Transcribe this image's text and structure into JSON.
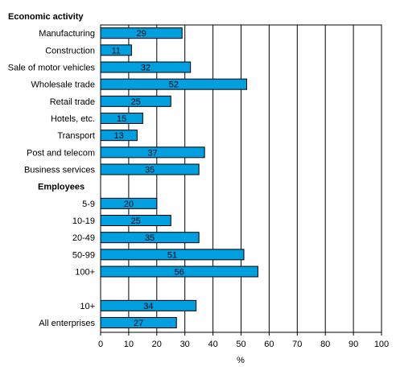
{
  "chart_data": {
    "type": "bar",
    "orientation": "horizontal",
    "xlabel": "%",
    "xlim": [
      0,
      100
    ],
    "xticks": [
      0,
      10,
      20,
      30,
      40,
      50,
      60,
      70,
      80,
      90,
      100
    ],
    "grid": true,
    "bar_color": "#00a0e0",
    "groups": [
      {
        "label": "Economic activity",
        "items": [
          {
            "category": "Manufacturing",
            "value": 29
          },
          {
            "category": "Construction",
            "value": 11
          },
          {
            "category": "Sale of motor vehicles",
            "value": 32
          },
          {
            "category": "Wholesale trade",
            "value": 52
          },
          {
            "category": "Retail trade",
            "value": 25
          },
          {
            "category": "Hotels, etc.",
            "value": 15
          },
          {
            "category": "Transport",
            "value": 13
          },
          {
            "category": "Post and telecom",
            "value": 37
          },
          {
            "category": "Business services",
            "value": 35
          }
        ]
      },
      {
        "label": "Employees",
        "items": [
          {
            "category": "5-9",
            "value": 20
          },
          {
            "category": "10-19",
            "value": 25
          },
          {
            "category": "20-49",
            "value": 35
          },
          {
            "category": "50-99",
            "value": 51
          },
          {
            "category": "100+",
            "value": 56
          }
        ]
      },
      {
        "label": "",
        "items": [
          {
            "category": "10+",
            "value": 34
          },
          {
            "category": "All enterprises",
            "value": 27
          }
        ]
      }
    ]
  }
}
